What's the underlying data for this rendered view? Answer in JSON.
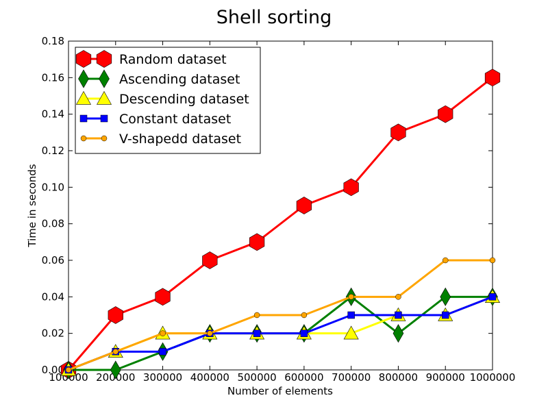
{
  "chart_data": {
    "type": "line",
    "title": "Shell sorting",
    "xlabel": "Number of elements",
    "ylabel": "Time in seconds",
    "x": [
      100000,
      200000,
      300000,
      400000,
      500000,
      600000,
      700000,
      800000,
      900000,
      1000000
    ],
    "xlim": [
      100000,
      1000000
    ],
    "ylim": [
      0.0,
      0.18
    ],
    "xticks": [
      100000,
      200000,
      300000,
      400000,
      500000,
      600000,
      700000,
      800000,
      900000,
      1000000
    ],
    "xtick_labels": [
      "100000",
      "200000",
      "300000",
      "400000",
      "500000",
      "600000",
      "700000",
      "800000",
      "900000",
      "1000000"
    ],
    "yticks": [
      0.0,
      0.02,
      0.04,
      0.06,
      0.08,
      0.1,
      0.12,
      0.14,
      0.16,
      0.18
    ],
    "ytick_labels": [
      "0.00",
      "0.02",
      "0.04",
      "0.06",
      "0.08",
      "0.10",
      "0.12",
      "0.14",
      "0.16",
      "0.18"
    ],
    "grid": false,
    "legend_position": "top-left",
    "series": [
      {
        "name": "Random dataset",
        "color": "#ff0000",
        "marker": "hexagon",
        "values": [
          0.0,
          0.03,
          0.04,
          0.06,
          0.07,
          0.09,
          0.1,
          0.13,
          0.14,
          0.16
        ]
      },
      {
        "name": "Ascending dataset",
        "color": "#008000",
        "marker": "diamond",
        "values": [
          0.0,
          0.0,
          0.01,
          0.02,
          0.02,
          0.02,
          0.04,
          0.02,
          0.04,
          0.04
        ]
      },
      {
        "name": "Descending dataset",
        "color": "#ffff00",
        "marker": "triangle",
        "values": [
          0.0,
          0.01,
          0.02,
          0.02,
          0.02,
          0.02,
          0.02,
          0.03,
          0.03,
          0.04
        ]
      },
      {
        "name": "Constant dataset",
        "color": "#0000ff",
        "marker": "square",
        "values": [
          0.0,
          0.01,
          0.01,
          0.02,
          0.02,
          0.02,
          0.03,
          0.03,
          0.03,
          0.04
        ]
      },
      {
        "name": "V-shapedd dataset",
        "color": "#ffa500",
        "marker": "circle",
        "values": [
          0.0,
          0.01,
          0.02,
          0.02,
          0.03,
          0.03,
          0.04,
          0.04,
          0.06,
          0.06
        ]
      }
    ]
  }
}
